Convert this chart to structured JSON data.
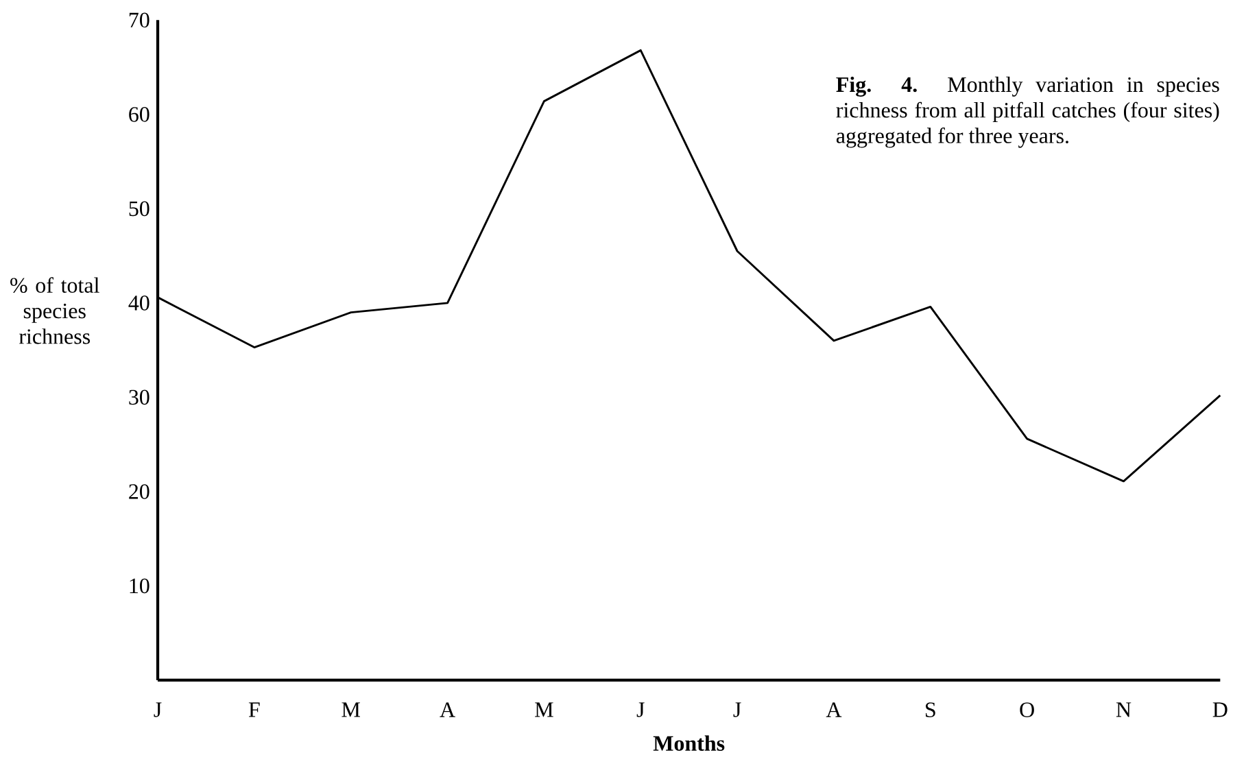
{
  "chart_data": {
    "type": "line",
    "title": "**Fig. 4.** Monthly variation in species richness from all pitfall catches (four sites) aggregated for three years.",
    "xlabel": "Months",
    "ylabel": "% of total species richness",
    "categories": [
      "J",
      "F",
      "M",
      "A",
      "M",
      "J",
      "J",
      "A",
      "S",
      "O",
      "N",
      "D"
    ],
    "values": [
      40.6,
      35.3,
      39.0,
      40.0,
      61.4,
      66.8,
      45.5,
      36.0,
      39.6,
      25.6,
      21.1,
      30.2
    ],
    "color": "#000000",
    "ylim": [
      0,
      70
    ],
    "yticks": [
      10,
      20,
      30,
      40,
      50,
      60,
      70
    ]
  }
}
